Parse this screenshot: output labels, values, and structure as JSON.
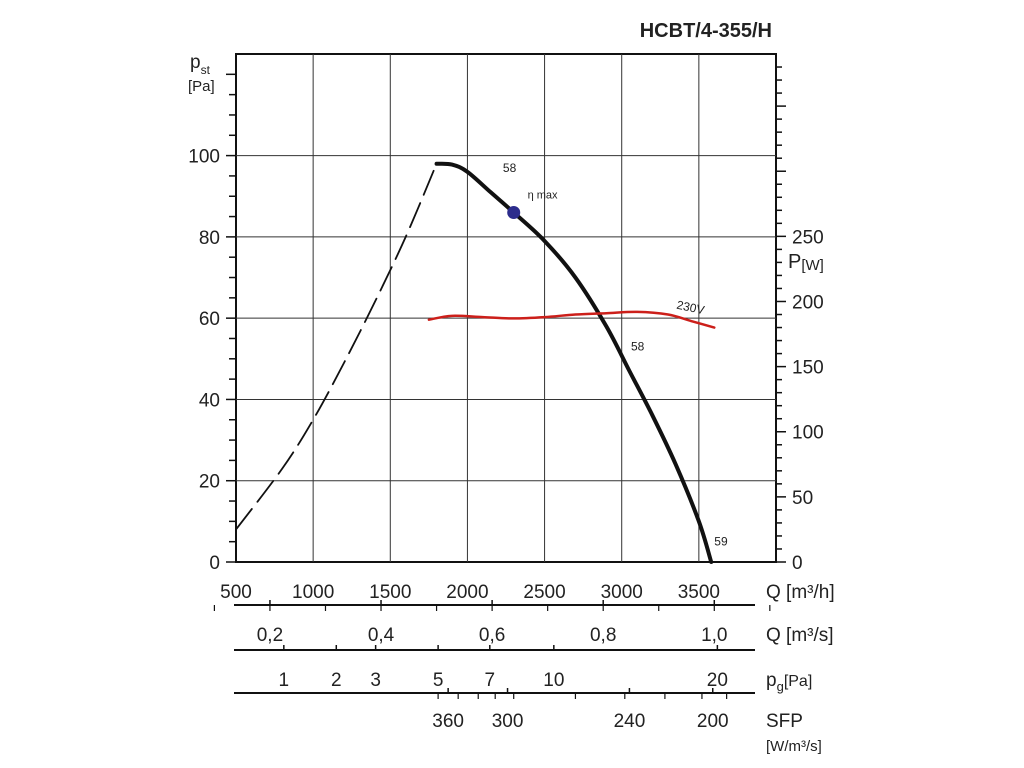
{
  "chart_data": {
    "type": "line",
    "title": "HCBT/4-355/H",
    "xlabel": "Q [m³/h]",
    "ylabel": "p",
    "ylabel_sub": "st",
    "ylabel_unit": "[Pa]",
    "y2label": "P",
    "y2label_unit": "[W]",
    "xlim": [
      500,
      4000
    ],
    "ylim": [
      0,
      125
    ],
    "y2lim": [
      0,
      390
    ],
    "x_ticks": [
      "500",
      "1000",
      "1500",
      "2000",
      "2500",
      "3000",
      "3500"
    ],
    "y_ticks": [
      "0",
      "20",
      "40",
      "60",
      "80",
      "100"
    ],
    "y2_ticks": [
      "0",
      "50",
      "100",
      "150",
      "200",
      "250"
    ],
    "series": [
      {
        "name": "pressure-solid",
        "style": "solid",
        "color": "#111111",
        "x": [
          1800,
          1900,
          2000,
          2150,
          2300,
          2500,
          2700,
          2900,
          3050,
          3200,
          3350,
          3500,
          3580
        ],
        "y": [
          98,
          97.8,
          96,
          91,
          86,
          79,
          70,
          58,
          47,
          36,
          24,
          10,
          0
        ]
      },
      {
        "name": "pressure-dashed",
        "style": "dashed",
        "color": "#111111",
        "x": [
          500,
          800,
          1000,
          1200,
          1400,
          1600,
          1800
        ],
        "y": [
          8,
          23,
          35,
          49,
          64,
          80,
          98
        ]
      },
      {
        "name": "power-230V",
        "axis": "right",
        "color": "#cc1f1a",
        "label": "230V",
        "x": [
          1750,
          1900,
          2100,
          2300,
          2500,
          2700,
          2900,
          3100,
          3300,
          3450,
          3600
        ],
        "y": [
          186,
          189,
          188,
          187,
          188,
          190,
          191,
          192,
          190,
          185,
          180
        ]
      }
    ],
    "annotations": [
      {
        "text": "58",
        "x": 2230,
        "y": 96
      },
      {
        "text": "58",
        "x": 3060,
        "y": 52
      },
      {
        "text": "59",
        "x": 3600,
        "y": 4
      },
      {
        "text": "η max",
        "x": 2390,
        "y": 89.5
      }
    ],
    "eta_max_point": {
      "x": 2300,
      "y": 86,
      "color": "#2c2c8c"
    },
    "secondary_scales": [
      {
        "ticks": [
          "0,2",
          "0,4",
          "0,6",
          "0,8",
          "1,0"
        ],
        "unit": "Q [m³/s]"
      },
      {
        "ticks": [
          "1",
          "2",
          "3",
          "5",
          "7",
          "10",
          "20"
        ],
        "unit": "p",
        "unit_sub": "g",
        "unit_rest": "[Pa]"
      },
      {
        "ticks": [
          "360",
          "300",
          "240",
          "200"
        ],
        "unit": "SFP",
        "unit_line2": "[W/m³/s]"
      }
    ]
  }
}
